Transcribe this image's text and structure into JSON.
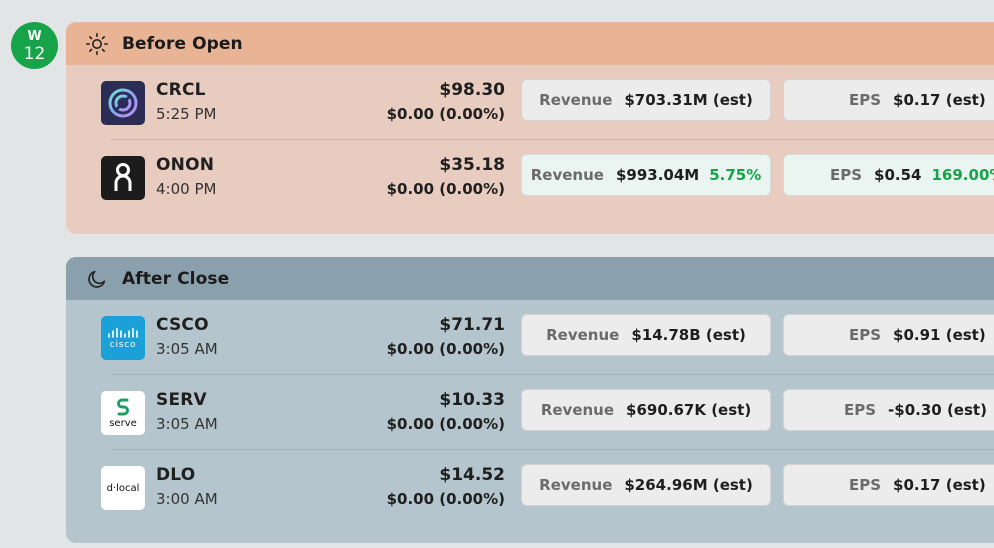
{
  "day": {
    "weekday": "W",
    "date": "12",
    "color": "#17a34a"
  },
  "sections": [
    {
      "id": "before",
      "title": "Before Open",
      "icon": "sun-icon",
      "rows": [
        {
          "ticker": "CRCL",
          "time": "5:25 PM",
          "price": "$98.30",
          "change": "$0.00 (0.00%)",
          "logo": "crcl-logo",
          "revenue": {
            "label": "Revenue",
            "value": "$703.31M (est)",
            "surprise": ""
          },
          "eps": {
            "label": "EPS",
            "value": "$0.17 (est)",
            "surprise": ""
          }
        },
        {
          "ticker": "ONON",
          "time": "4:00 PM",
          "price": "$35.18",
          "change": "$0.00 (0.00%)",
          "logo": "onon-logo",
          "revenue": {
            "label": "Revenue",
            "value": "$993.04M",
            "surprise": "5.75%"
          },
          "eps": {
            "label": "EPS",
            "value": "$0.54",
            "surprise": "169.00%"
          }
        }
      ]
    },
    {
      "id": "after",
      "title": "After Close",
      "icon": "moon-icon",
      "rows": [
        {
          "ticker": "CSCO",
          "time": "3:05 AM",
          "price": "$71.71",
          "change": "$0.00 (0.00%)",
          "logo": "cisco-logo",
          "logo_text": "cisco",
          "revenue": {
            "label": "Revenue",
            "value": "$14.78B (est)",
            "surprise": ""
          },
          "eps": {
            "label": "EPS",
            "value": "$0.91 (est)",
            "surprise": ""
          }
        },
        {
          "ticker": "SERV",
          "time": "3:05 AM",
          "price": "$10.33",
          "change": "$0.00 (0.00%)",
          "logo": "serve-logo",
          "logo_text": "serve",
          "revenue": {
            "label": "Revenue",
            "value": "$690.67K (est)",
            "surprise": ""
          },
          "eps": {
            "label": "EPS",
            "value": "-$0.30 (est)",
            "surprise": ""
          }
        },
        {
          "ticker": "DLO",
          "time": "3:00 AM",
          "price": "$14.52",
          "change": "$0.00 (0.00%)",
          "logo": "dlocal-logo",
          "logo_text": "d·local",
          "revenue": {
            "label": "Revenue",
            "value": "$264.96M (est)",
            "surprise": ""
          },
          "eps": {
            "label": "EPS",
            "value": "$0.17 (est)",
            "surprise": ""
          }
        }
      ]
    }
  ]
}
